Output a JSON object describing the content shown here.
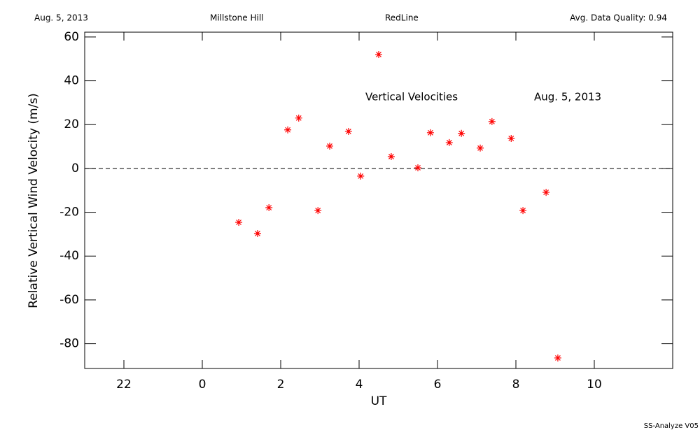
{
  "header": {
    "date": "Aug. 5, 2013",
    "site": "Millstone Hill",
    "instrument": "RedLine",
    "quality": "Avg. Data Quality: 0.94"
  },
  "chart_data": {
    "type": "scatter",
    "annotations": [
      "Vertical Velocities",
      "Aug. 5, 2013"
    ],
    "xlabel": "UT",
    "ylabel": "Relative Vertical Wind Velocity (m/s)",
    "x": [
      0.93,
      1.41,
      1.7,
      2.18,
      2.46,
      2.95,
      3.25,
      3.73,
      4.04,
      4.5,
      4.82,
      5.5,
      5.82,
      6.3,
      6.61,
      7.09,
      7.39,
      7.88,
      8.18,
      8.77,
      9.07
    ],
    "values": [
      -24.6,
      -29.7,
      -17.9,
      17.6,
      23.0,
      -19.2,
      10.2,
      16.9,
      -3.5,
      52.0,
      5.4,
      0.3,
      16.3,
      11.8,
      16.0,
      9.3,
      21.4,
      13.7,
      -19.2,
      -10.9,
      -86.5
    ],
    "color": "#ff0000",
    "marker": "asterisk",
    "hline": 0,
    "xlim": [
      -3,
      12
    ],
    "xticks": [
      {
        "value": -2,
        "label": "22"
      },
      0,
      2,
      4,
      6,
      8,
      10
    ],
    "ylim": [
      -91.3,
      62.2
    ],
    "yticks": [
      -80,
      -60,
      -40,
      -20,
      0,
      20,
      40,
      60
    ]
  },
  "footer": "SS-Analyze V05"
}
